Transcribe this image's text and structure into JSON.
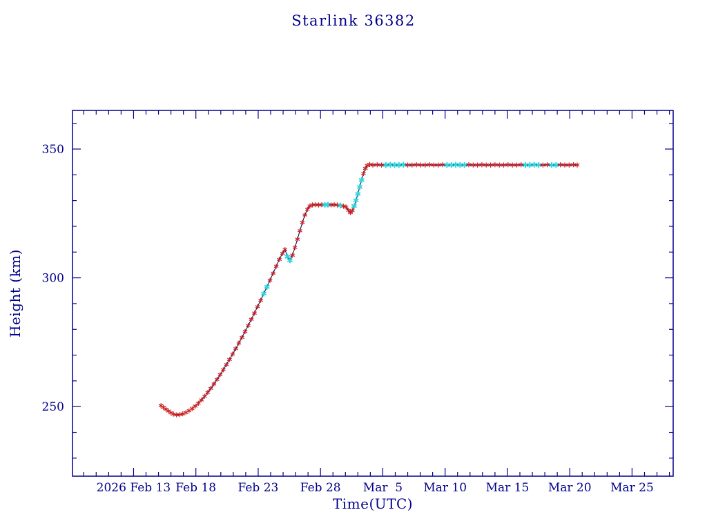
{
  "page": {
    "title": "Starlink 36382"
  },
  "chart_data": {
    "type": "line",
    "title": "Starlink 36382",
    "xlabel": "Time(UTC)",
    "ylabel": "Height (km)",
    "x_axis_note": "t = days since 2026 Feb 13 00:00 UTC",
    "xlim": [
      -4.9,
      43.3
    ],
    "ylim": [
      223,
      365
    ],
    "grid": false,
    "legend": null,
    "x_major_ticks": [
      {
        "t": 0,
        "label": "2026 Feb 13"
      },
      {
        "t": 5,
        "label": "Feb 18"
      },
      {
        "t": 10,
        "label": "Feb 23"
      },
      {
        "t": 15,
        "label": "Feb 28"
      },
      {
        "t": 20,
        "label": "Mar  5"
      },
      {
        "t": 25,
        "label": "Mar 10"
      },
      {
        "t": 30,
        "label": "Mar 15"
      },
      {
        "t": 35,
        "label": "Mar 20"
      },
      {
        "t": 40,
        "label": "Mar 25"
      }
    ],
    "x_minor_step_days": 1,
    "y_major_ticks": [
      {
        "v": 250,
        "label": "250"
      },
      {
        "v": 300,
        "label": "300"
      },
      {
        "v": 350,
        "label": "350"
      }
    ],
    "y_minor_step": 10,
    "colors": {
      "background": "#ffffff",
      "axis": "#00008b",
      "text": "#00008b",
      "line": "#101060",
      "marker_red": "#cc2222",
      "marker_cyan": "#2fd5dd"
    },
    "series": [
      {
        "name": "height-km",
        "marker": "asterisk",
        "marker_color_key": {
          "0": "marker_red",
          "1": "marker_cyan"
        },
        "points": [
          [
            2.2,
            250.4,
            0
          ],
          [
            2.4,
            249.7,
            0
          ],
          [
            2.6,
            249.0,
            0
          ],
          [
            2.8,
            248.3,
            0
          ],
          [
            3.0,
            247.6,
            0
          ],
          [
            3.2,
            247.1,
            0
          ],
          [
            3.45,
            246.8,
            0
          ],
          [
            3.7,
            246.9,
            0
          ],
          [
            3.95,
            247.2,
            0
          ],
          [
            4.2,
            247.7,
            0
          ],
          [
            4.45,
            248.4,
            0
          ],
          [
            4.7,
            249.2,
            0
          ],
          [
            4.95,
            250.2,
            0
          ],
          [
            5.2,
            251.3,
            0
          ],
          [
            5.45,
            252.6,
            0
          ],
          [
            5.7,
            254.0,
            0
          ],
          [
            5.95,
            255.5,
            0
          ],
          [
            6.2,
            257.1,
            0
          ],
          [
            6.45,
            258.8,
            0
          ],
          [
            6.7,
            260.6,
            0
          ],
          [
            6.95,
            262.4,
            0
          ],
          [
            7.2,
            264.3,
            0
          ],
          [
            7.45,
            266.3,
            0
          ],
          [
            7.7,
            268.3,
            0
          ],
          [
            7.95,
            270.4,
            0
          ],
          [
            8.2,
            272.5,
            0
          ],
          [
            8.45,
            274.7,
            0
          ],
          [
            8.7,
            276.9,
            0
          ],
          [
            8.95,
            279.2,
            0
          ],
          [
            9.2,
            281.5,
            0
          ],
          [
            9.45,
            283.9,
            0
          ],
          [
            9.7,
            286.3,
            0
          ],
          [
            9.95,
            288.8,
            0
          ],
          [
            10.2,
            291.3,
            0
          ],
          [
            10.45,
            293.9,
            1
          ],
          [
            10.7,
            296.5,
            1
          ],
          [
            10.95,
            299.1,
            0
          ],
          [
            11.2,
            301.8,
            0
          ],
          [
            11.45,
            304.5,
            0
          ],
          [
            11.7,
            307.2,
            0
          ],
          [
            11.95,
            309.5,
            0
          ],
          [
            12.15,
            311.0,
            0
          ],
          [
            12.35,
            308.2,
            1
          ],
          [
            12.55,
            306.8,
            1
          ],
          [
            12.75,
            308.8,
            0
          ],
          [
            12.95,
            311.8,
            0
          ],
          [
            13.15,
            315.0,
            0
          ],
          [
            13.35,
            318.3,
            0
          ],
          [
            13.55,
            321.5,
            0
          ],
          [
            13.75,
            324.4,
            0
          ],
          [
            13.95,
            326.6,
            0
          ],
          [
            14.15,
            327.9,
            0
          ],
          [
            14.35,
            328.3,
            0
          ],
          [
            14.6,
            328.4,
            0
          ],
          [
            14.85,
            328.3,
            0
          ],
          [
            15.1,
            328.4,
            0
          ],
          [
            15.35,
            328.3,
            1
          ],
          [
            15.6,
            328.4,
            1
          ],
          [
            15.85,
            328.3,
            0
          ],
          [
            16.1,
            328.4,
            0
          ],
          [
            16.35,
            328.3,
            0
          ],
          [
            16.6,
            328.1,
            1
          ],
          [
            16.85,
            327.8,
            0
          ],
          [
            17.05,
            327.5,
            0
          ],
          [
            17.25,
            326.2,
            0
          ],
          [
            17.4,
            325.3,
            0
          ],
          [
            17.55,
            326.1,
            0
          ],
          [
            17.7,
            327.9,
            1
          ],
          [
            17.85,
            330.1,
            1
          ],
          [
            18.0,
            332.6,
            1
          ],
          [
            18.15,
            335.3,
            1
          ],
          [
            18.3,
            338.0,
            1
          ],
          [
            18.45,
            340.5,
            0
          ],
          [
            18.6,
            342.5,
            0
          ],
          [
            18.75,
            343.6,
            0
          ],
          [
            18.95,
            344.0,
            0
          ],
          [
            19.2,
            343.8,
            0
          ],
          [
            19.55,
            343.9,
            0
          ],
          [
            19.9,
            343.8,
            0
          ],
          [
            20.25,
            343.8,
            1
          ],
          [
            20.6,
            343.9,
            1
          ],
          [
            20.95,
            343.8,
            1
          ],
          [
            21.3,
            343.8,
            1
          ],
          [
            21.65,
            343.9,
            1
          ],
          [
            22.0,
            343.8,
            0
          ],
          [
            22.35,
            343.8,
            0
          ],
          [
            22.7,
            343.9,
            0
          ],
          [
            23.05,
            343.8,
            0
          ],
          [
            23.4,
            343.8,
            0
          ],
          [
            23.75,
            343.9,
            0
          ],
          [
            24.1,
            343.8,
            0
          ],
          [
            24.45,
            343.8,
            0
          ],
          [
            24.8,
            343.9,
            0
          ],
          [
            25.15,
            343.8,
            1
          ],
          [
            25.5,
            343.8,
            1
          ],
          [
            25.85,
            343.9,
            1
          ],
          [
            26.2,
            343.8,
            1
          ],
          [
            26.55,
            343.8,
            1
          ],
          [
            26.9,
            343.9,
            0
          ],
          [
            27.25,
            343.8,
            0
          ],
          [
            27.6,
            343.8,
            0
          ],
          [
            27.95,
            343.9,
            0
          ],
          [
            28.3,
            343.8,
            0
          ],
          [
            28.65,
            343.8,
            0
          ],
          [
            29.0,
            343.9,
            0
          ],
          [
            29.35,
            343.8,
            0
          ],
          [
            29.7,
            343.8,
            0
          ],
          [
            30.05,
            343.9,
            0
          ],
          [
            30.4,
            343.8,
            0
          ],
          [
            30.75,
            343.8,
            0
          ],
          [
            31.1,
            343.9,
            0
          ],
          [
            31.45,
            343.8,
            1
          ],
          [
            31.8,
            343.8,
            1
          ],
          [
            32.15,
            343.9,
            1
          ],
          [
            32.5,
            343.8,
            1
          ],
          [
            32.85,
            343.8,
            0
          ],
          [
            33.2,
            343.9,
            0
          ],
          [
            33.55,
            343.8,
            1
          ],
          [
            33.9,
            343.8,
            1
          ],
          [
            34.25,
            343.9,
            0
          ],
          [
            34.6,
            343.8,
            0
          ],
          [
            34.95,
            343.8,
            0
          ],
          [
            35.3,
            343.9,
            0
          ],
          [
            35.6,
            343.8,
            0
          ]
        ]
      }
    ]
  }
}
